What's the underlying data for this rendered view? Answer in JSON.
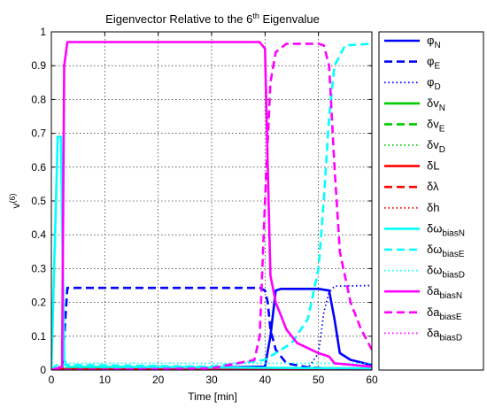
{
  "chart_data": {
    "type": "line",
    "title_main": "Eigenvector Relative to the 6",
    "title_sup": "th",
    "title_tail": " Eigenvalue",
    "xlabel": "Time [min]",
    "ylabel_main": "v",
    "ylabel_sup": "(6)",
    "xlim": [
      0,
      60
    ],
    "ylim": [
      0,
      1
    ],
    "xticks": [
      "0",
      "10",
      "20",
      "30",
      "40",
      "50",
      "60"
    ],
    "yticks": [
      "0",
      "0.1",
      "0.2",
      "0.3",
      "0.4",
      "0.5",
      "0.6",
      "0.7",
      "0.8",
      "0.9",
      "1"
    ],
    "grid": true,
    "legend_position": "outside-right",
    "series": [
      {
        "name_main": "φ",
        "name_sub": "N",
        "color": "#0000ff",
        "style": "solid",
        "points": [
          [
            0,
            0
          ],
          [
            40,
            0.01
          ],
          [
            41,
            0.1
          ],
          [
            42,
            0.235
          ],
          [
            43,
            0.24
          ],
          [
            50,
            0.24
          ],
          [
            52,
            0.235
          ],
          [
            53,
            0.15
          ],
          [
            54,
            0.05
          ],
          [
            56,
            0.03
          ],
          [
            60,
            0.015
          ]
        ]
      },
      {
        "name_main": "φ",
        "name_sub": "E",
        "color": "#0000ff",
        "style": "dashed",
        "points": [
          [
            0,
            0
          ],
          [
            2,
            0
          ],
          [
            3,
            0.243
          ],
          [
            39,
            0.243
          ],
          [
            40,
            0.235
          ],
          [
            40.5,
            0.2
          ],
          [
            41,
            0.12
          ],
          [
            42,
            0.06
          ],
          [
            44,
            0.02
          ],
          [
            48,
            0.008
          ],
          [
            52,
            0.005
          ],
          [
            60,
            0.003
          ]
        ]
      },
      {
        "name_main": "φ",
        "name_sub": "D",
        "color": "#0000ff",
        "style": "dotted",
        "points": [
          [
            0,
            0
          ],
          [
            40,
            0
          ],
          [
            48,
            0.005
          ],
          [
            50,
            0.05
          ],
          [
            51,
            0.17
          ],
          [
            52,
            0.23
          ],
          [
            53,
            0.248
          ],
          [
            60,
            0.25
          ]
        ]
      },
      {
        "name_main": "δv",
        "name_sub": "N",
        "color": "#00cc00",
        "style": "solid",
        "points": [
          [
            0,
            0.004
          ],
          [
            60,
            0.004
          ]
        ]
      },
      {
        "name_main": "δv",
        "name_sub": "E",
        "color": "#00cc00",
        "style": "dashed",
        "points": [
          [
            0,
            0.003
          ],
          [
            60,
            0.003
          ]
        ]
      },
      {
        "name_main": "δv",
        "name_sub": "D",
        "color": "#00cc00",
        "style": "dotted",
        "points": [
          [
            0,
            0.002
          ],
          [
            60,
            0.002
          ]
        ]
      },
      {
        "name_main": "δL",
        "name_sub": "",
        "color": "#ff0000",
        "style": "solid",
        "points": [
          [
            0,
            0.002
          ],
          [
            60,
            0.002
          ]
        ]
      },
      {
        "name_main": "δλ",
        "name_sub": "",
        "color": "#ff0000",
        "style": "dashed",
        "points": [
          [
            0,
            0.001
          ],
          [
            60,
            0.001
          ]
        ]
      },
      {
        "name_main": "δh",
        "name_sub": "",
        "color": "#ff0000",
        "style": "dotted",
        "points": [
          [
            0,
            0.001
          ],
          [
            60,
            0.001
          ]
        ]
      },
      {
        "name_main": "δω",
        "name_sub": "biasN",
        "color": "#00ffff",
        "style": "solid",
        "points": [
          [
            0,
            0
          ],
          [
            1.2,
            0.69
          ],
          [
            1.8,
            0.69
          ],
          [
            2.4,
            0.03
          ],
          [
            3,
            0.01
          ],
          [
            60,
            0.005
          ]
        ]
      },
      {
        "name_main": "δω",
        "name_sub": "biasE",
        "color": "#00ffff",
        "style": "dashed",
        "points": [
          [
            0,
            0
          ],
          [
            1,
            0.015
          ],
          [
            3,
            0.015
          ],
          [
            30,
            0.01
          ],
          [
            40,
            0.03
          ],
          [
            45,
            0.08
          ],
          [
            48,
            0.15
          ],
          [
            50,
            0.3
          ],
          [
            51,
            0.5
          ],
          [
            52,
            0.75
          ],
          [
            53,
            0.9
          ],
          [
            55,
            0.96
          ],
          [
            60,
            0.965
          ]
        ]
      },
      {
        "name_main": "δω",
        "name_sub": "biasD",
        "color": "#00ffff",
        "style": "dotted",
        "points": [
          [
            0,
            0
          ],
          [
            2,
            0.02
          ],
          [
            40,
            0.02
          ],
          [
            60,
            0.02
          ]
        ]
      },
      {
        "name_main": "δa",
        "name_sub": "biasN",
        "color": "#ff00ff",
        "style": "solid",
        "points": [
          [
            0,
            0
          ],
          [
            2,
            0.01
          ],
          [
            2.4,
            0.9
          ],
          [
            3,
            0.97
          ],
          [
            39,
            0.97
          ],
          [
            40,
            0.95
          ],
          [
            40.5,
            0.6
          ],
          [
            41,
            0.28
          ],
          [
            42,
            0.2
          ],
          [
            44,
            0.12
          ],
          [
            46,
            0.08
          ],
          [
            50,
            0.05
          ],
          [
            52,
            0.04
          ],
          [
            53,
            0.02
          ],
          [
            60,
            0.01
          ]
        ]
      },
      {
        "name_main": "δa",
        "name_sub": "biasE",
        "color": "#ff00ff",
        "style": "dashed",
        "points": [
          [
            0,
            0
          ],
          [
            2,
            0
          ],
          [
            30,
            0.005
          ],
          [
            38,
            0.03
          ],
          [
            39,
            0.1
          ],
          [
            40,
            0.5
          ],
          [
            41,
            0.85
          ],
          [
            42,
            0.94
          ],
          [
            44,
            0.965
          ],
          [
            50,
            0.965
          ],
          [
            51,
            0.96
          ],
          [
            52,
            0.9
          ],
          [
            53,
            0.6
          ],
          [
            54,
            0.35
          ],
          [
            56,
            0.2
          ],
          [
            58,
            0.12
          ],
          [
            60,
            0.06
          ]
        ]
      },
      {
        "name_main": "δa",
        "name_sub": "biasD",
        "color": "#ff00ff",
        "style": "dotted",
        "points": [
          [
            0,
            0
          ],
          [
            60,
            0
          ]
        ]
      }
    ]
  }
}
